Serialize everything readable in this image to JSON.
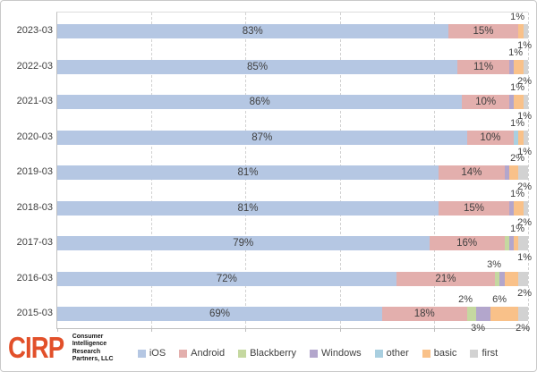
{
  "chart_data": {
    "type": "bar",
    "orientation": "horizontal-stacked-100pct",
    "categories": [
      "2023-03",
      "2022-03",
      "2021-03",
      "2020-03",
      "2019-03",
      "2018-03",
      "2017-03",
      "2016-03",
      "2015-03"
    ],
    "series": [
      {
        "name": "iOS",
        "color": "#b5c7e3",
        "values": [
          83,
          85,
          86,
          87,
          81,
          81,
          79,
          72,
          69
        ]
      },
      {
        "name": "Android",
        "color": "#e3afad",
        "values": [
          15,
          11,
          10,
          10,
          14,
          15,
          16,
          21,
          18
        ]
      },
      {
        "name": "Blackberry",
        "color": "#c5d8a0",
        "values": [
          0,
          0,
          0,
          0,
          0,
          0,
          1,
          1,
          2
        ]
      },
      {
        "name": "Windows",
        "color": "#b3a6cc",
        "values": [
          0,
          1,
          1,
          0,
          1,
          1,
          1,
          1,
          3
        ]
      },
      {
        "name": "other",
        "color": "#a9cfe0",
        "values": [
          0,
          0,
          0,
          1,
          0,
          0,
          0,
          0,
          0
        ]
      },
      {
        "name": "basic",
        "color": "#f9c189",
        "values": [
          1,
          2,
          2,
          1,
          2,
          2,
          1,
          3,
          6
        ]
      },
      {
        "name": "first",
        "color": "#d2d2d2",
        "values": [
          1,
          1,
          1,
          1,
          2,
          1,
          2,
          2,
          2
        ]
      }
    ],
    "xlim": [
      0,
      100
    ],
    "gridlines_pct": [
      20,
      40,
      60,
      80,
      100
    ],
    "grid_style": "dashed",
    "inside_label_series": [
      "iOS",
      "Android"
    ],
    "inside_labels": {
      "iOS": [
        "83%",
        "85%",
        "86%",
        "87%",
        "81%",
        "81%",
        "79%",
        "72%",
        "69%"
      ],
      "Android": [
        "15%",
        "11%",
        "10%",
        "10%",
        "14%",
        "15%",
        "16%",
        "21%",
        "18%"
      ]
    },
    "outside_labels": [
      {
        "row": 0,
        "pos": "above",
        "text": "1%",
        "right": 4
      },
      {
        "row": 0,
        "pos": "below",
        "text": "1%",
        "right": -4
      },
      {
        "row": 1,
        "pos": "above",
        "text": "1%",
        "right": 6
      },
      {
        "row": 1,
        "pos": "below",
        "text": "2%",
        "right": -4
      },
      {
        "row": 2,
        "pos": "above",
        "text": "1%",
        "right": 4
      },
      {
        "row": 2,
        "pos": "below",
        "text": "1%",
        "right": -4
      },
      {
        "row": 3,
        "pos": "above",
        "text": "1%",
        "right": 4
      },
      {
        "row": 3,
        "pos": "below",
        "text": "1%",
        "right": -4
      },
      {
        "row": 4,
        "pos": "above",
        "text": "2%",
        "right": 4
      },
      {
        "row": 4,
        "pos": "below",
        "text": "2%",
        "right": -4
      },
      {
        "row": 5,
        "pos": "above",
        "text": "1%",
        "right": 4
      },
      {
        "row": 5,
        "pos": "below",
        "text": "2%",
        "right": -4
      },
      {
        "row": 6,
        "pos": "above",
        "text": "1%",
        "right": 4
      },
      {
        "row": 6,
        "pos": "below",
        "text": "1%",
        "right": -4
      },
      {
        "row": 7,
        "pos": "above",
        "text": "3%",
        "right": 30
      },
      {
        "row": 7,
        "pos": "below",
        "text": "2%",
        "right": -4
      },
      {
        "row": 8,
        "pos": "above",
        "text": "2%",
        "right": 62
      },
      {
        "row": 8,
        "pos": "above",
        "text": "6%",
        "right": 24
      },
      {
        "row": 8,
        "pos": "below",
        "text": "3%",
        "right": 48
      },
      {
        "row": 8,
        "pos": "below",
        "text": "2%",
        "right": -2
      }
    ],
    "legend_position": "bottom"
  },
  "legend": {
    "items": [
      {
        "label": "iOS",
        "color": "#b5c7e3"
      },
      {
        "label": "Android",
        "color": "#e3afad"
      },
      {
        "label": "Blackberry",
        "color": "#c5d8a0"
      },
      {
        "label": "Windows",
        "color": "#b3a6cc"
      },
      {
        "label": "other",
        "color": "#a9cfe0"
      },
      {
        "label": "basic",
        "color": "#f9c189"
      },
      {
        "label": "first",
        "color": "#d2d2d2"
      }
    ]
  },
  "logo": {
    "word": "CIRP",
    "word_color": "#e2502a",
    "lines": [
      "Consumer",
      "Intelligence",
      "Research",
      "Partners, LLC"
    ]
  },
  "colors": {
    "gridline": "#d2d2d2",
    "axis": "#bfbfbf",
    "label_text": "#3f3f3f",
    "background": "#ffffff"
  }
}
